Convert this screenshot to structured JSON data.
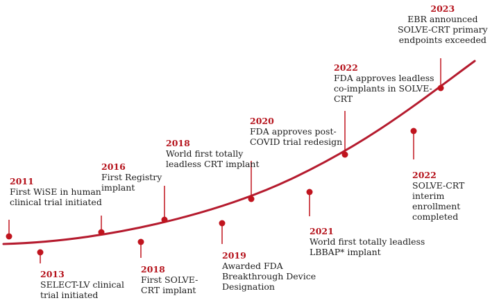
{
  "colors": {
    "line": "#b51b2e",
    "dot": "#c0141e",
    "year": "#b5121b",
    "text": "#1a1a1a"
  },
  "events": [
    {
      "id": "e2011",
      "year": "2011",
      "text": "First WiSE in human\nclinical trial initiated"
    },
    {
      "id": "e2013",
      "year": "2013",
      "text": "SELECT-LV clinical\ntrial initiated"
    },
    {
      "id": "e2016",
      "year": "2016",
      "text": "First Registry\nimplant"
    },
    {
      "id": "e2018a",
      "year": "2018",
      "text": "First SOLVE-\nCRT implant"
    },
    {
      "id": "e2018b",
      "year": "2018",
      "text": "World first totally\nleadless CRT implant"
    },
    {
      "id": "e2019",
      "year": "2019",
      "text": "Awarded FDA\nBreakthrough Device\nDesignation"
    },
    {
      "id": "e2020",
      "year": "2020",
      "text": "FDA approves post-\nCOVID trial redesign"
    },
    {
      "id": "e2021",
      "year": "2021",
      "text": "World first totally leadless\nLBBAP* implant"
    },
    {
      "id": "e2022a",
      "year": "2022",
      "text": "FDA approves leadless\nco-implants in SOLVE-\nCRT"
    },
    {
      "id": "e2022b",
      "year": "2022",
      "text": "SOLVE-CRT interim\nenrollment completed"
    },
    {
      "id": "e2023",
      "year": "2023",
      "text": "EBR announced\nSOLVE-CRT primary\nendpoints exceeded"
    }
  ]
}
